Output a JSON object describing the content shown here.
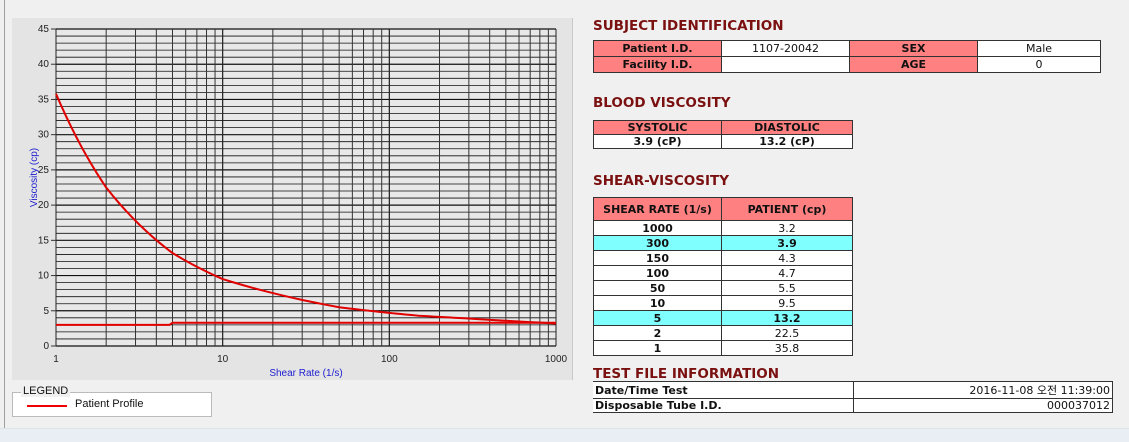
{
  "chart_data": {
    "type": "line",
    "xlabel": "Shear Rate (1/s)",
    "ylabel": "Viscosity (cp)",
    "xscale": "log",
    "xlim": [
      1,
      1000
    ],
    "ylim": [
      0,
      45
    ],
    "xticks": [
      "1",
      "10",
      "100",
      "1000"
    ],
    "yticks": [
      "0",
      "5",
      "10",
      "15",
      "20",
      "25",
      "30",
      "35",
      "40",
      "45"
    ],
    "grid": true,
    "legend_title": "LEGEND",
    "legend_placement": "bottom-left",
    "series": [
      {
        "name": "Patient Profile",
        "color": "#e00000",
        "x": [
          1,
          2,
          5,
          10,
          50,
          100,
          150,
          300,
          1000
        ],
        "y": [
          35.8,
          22.5,
          13.2,
          9.5,
          5.5,
          4.7,
          4.3,
          3.9,
          3.2
        ]
      },
      {
        "color": "#e00000",
        "x": [
          1,
          4.8,
          5,
          1000
        ],
        "y": [
          3.0,
          3.0,
          3.3,
          3.3
        ]
      }
    ]
  },
  "subject": {
    "title": "SUBJECT IDENTIFICATION",
    "patient_label": "Patient I.D.",
    "patient_value": "1107-20042",
    "sex_label": "SEX",
    "sex_value": "Male",
    "facility_label": "Facility I.D.",
    "facility_value": "",
    "age_label": "AGE",
    "age_value": "0"
  },
  "blood": {
    "title": "BLOOD VISCOSITY",
    "systolic_label": "SYSTOLIC",
    "diastolic_label": "DIASTOLIC",
    "systolic_value": "3.9 (cP)",
    "diastolic_value": "13.2 (cP)"
  },
  "shear": {
    "title": "SHEAR-VISCOSITY",
    "col1": "SHEAR RATE (1/s)",
    "col2": "PATIENT (cp)",
    "highlight_color": "#80ffff",
    "rows": [
      {
        "rate": "1000",
        "value": "3.2"
      },
      {
        "rate": "300",
        "value": "3.9",
        "hl": true
      },
      {
        "rate": "150",
        "value": "4.3"
      },
      {
        "rate": "100",
        "value": "4.7"
      },
      {
        "rate": "50",
        "value": "5.5"
      },
      {
        "rate": "10",
        "value": "9.5"
      },
      {
        "rate": "5",
        "value": "13.2",
        "hl": true
      },
      {
        "rate": "2",
        "value": "22.5"
      },
      {
        "rate": "1",
        "value": "35.8"
      }
    ]
  },
  "testfile": {
    "title": "TEST FILE INFORMATION",
    "date_label": "Date/Time Test",
    "date_value": "2016-11-08  오전 11:39:00",
    "tube_label": "Disposable Tube I.D.",
    "tube_value": "000037012"
  }
}
